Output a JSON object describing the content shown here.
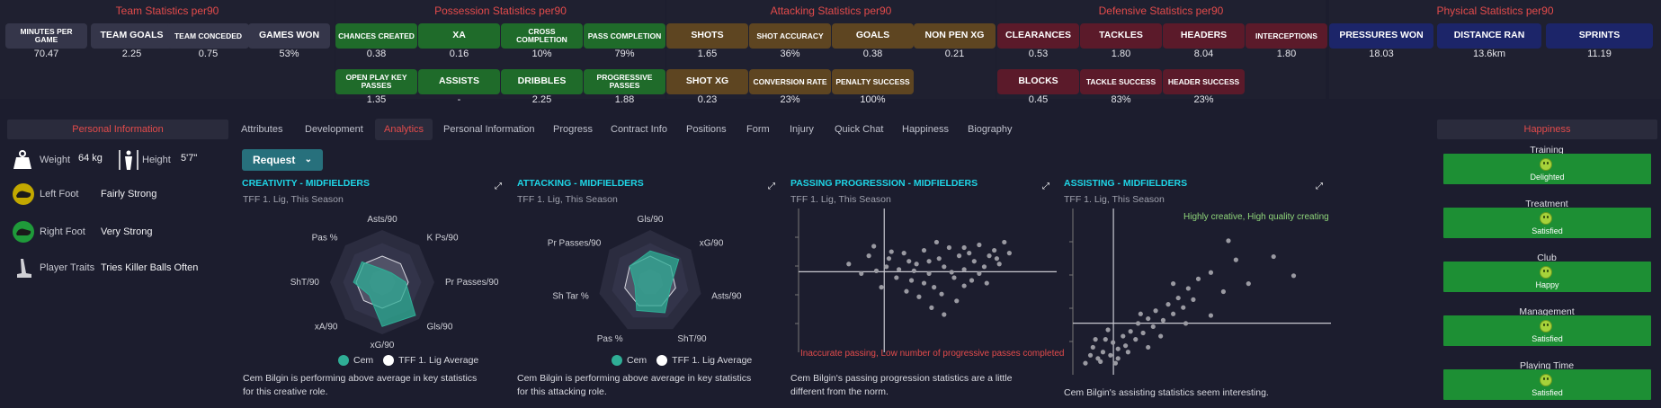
{
  "groups": {
    "team": {
      "title": "Team Statistics per90",
      "tiles": [
        {
          "label": "Minutes per game",
          "value": "70.47"
        },
        {
          "label": "Team goals",
          "value": "2.25"
        },
        {
          "label": "Team conceded",
          "value": "0.75"
        },
        {
          "label": "Games won",
          "value": "53%"
        }
      ]
    },
    "possession": {
      "title": "Possession Statistics per90",
      "tiles": [
        {
          "label": "Chances created",
          "value": "0.38"
        },
        {
          "label": "XA",
          "value": "0.16"
        },
        {
          "label": "Cross completion",
          "value": "10%"
        },
        {
          "label": "Pass completion",
          "value": "79%"
        },
        {
          "label": "Open play key passes",
          "value": "1.35"
        },
        {
          "label": "Assists",
          "value": "-"
        },
        {
          "label": "Dribbles",
          "value": "2.25"
        },
        {
          "label": "Progressive passes",
          "value": "1.88"
        }
      ]
    },
    "attacking": {
      "title": "Attacking Statistics per90",
      "tiles": [
        {
          "label": "Shots",
          "value": "1.65"
        },
        {
          "label": "Shot accuracy",
          "value": "36%"
        },
        {
          "label": "Goals",
          "value": "0.38"
        },
        {
          "label": "Non pen XG",
          "value": "0.21"
        },
        {
          "label": "Shot XG",
          "value": "0.23"
        },
        {
          "label": "Conversion rate",
          "value": "23%"
        },
        {
          "label": "Penalty success",
          "value": "100%"
        }
      ]
    },
    "defensive": {
      "title": "Defensive Statistics per90",
      "tiles": [
        {
          "label": "Clearances",
          "value": "0.53"
        },
        {
          "label": "Tackles",
          "value": "1.80"
        },
        {
          "label": "Headers",
          "value": "8.04"
        },
        {
          "label": "Interceptions",
          "value": "1.80"
        },
        {
          "label": "Blocks",
          "value": "0.45"
        },
        {
          "label": "Tackle success",
          "value": "83%"
        },
        {
          "label": "Header success",
          "value": "23%"
        }
      ]
    },
    "physical": {
      "title": "Physical Statistics per90",
      "tiles": [
        {
          "label": "Pressures won",
          "value": "18.03"
        },
        {
          "label": "Distance ran",
          "value": "13.6km"
        },
        {
          "label": "Sprints",
          "value": "11.19"
        }
      ]
    }
  },
  "personal": {
    "title": "Personal Information",
    "weight_label": "Weight",
    "weight_value": "64 kg",
    "height_label": "Height",
    "height_value": "5'7\"",
    "left_foot_label": "Left Foot",
    "left_foot_value": "Fairly Strong",
    "right_foot_label": "Right Foot",
    "right_foot_value": "Very Strong",
    "traits_label": "Player Traits",
    "traits_value": "Tries Killer Balls Often"
  },
  "tabs": [
    "Attributes",
    "Development",
    "Analytics",
    "Personal Information",
    "Progress",
    "Contract Info",
    "Positions",
    "Form",
    "Injury",
    "Quick Chat",
    "Happiness",
    "Biography"
  ],
  "active_tab": "Analytics",
  "request_label": "Request",
  "panels": {
    "creativity": {
      "title": "CREATIVITY - MIDFIELDERS",
      "subtitle": "TFF 1. Lig, This Season",
      "description": "Cem Bilgin is performing above average in key statistics for this creative role.",
      "legend_player": "Cem",
      "legend_avg": "TFF 1. Lig Average"
    },
    "attacking": {
      "title": "ATTACKING - MIDFIELDERS",
      "subtitle": "TFF 1. Lig, This Season",
      "description": "Cem Bilgin is performing above average in key statistics for this attacking role.",
      "legend_player": "Cem",
      "legend_avg": "TFF 1. Lig Average"
    },
    "passing": {
      "title": "PASSING PROGRESSION - MIDFIELDERS",
      "subtitle": "TFF 1. Lig, This Season",
      "description": "Cem Bilgin's passing progression statistics are a little different from the norm.",
      "annotation": "Inaccurate passing, Low number of progressive passes completed"
    },
    "assisting": {
      "title": "ASSISTING - MIDFIELDERS",
      "subtitle": "TFF 1. Lig, This Season",
      "description": "Cem Bilgin's assisting statistics seem interesting.",
      "annotation": "Highly creative, High quality creating"
    }
  },
  "chart_data": [
    {
      "type": "radar",
      "title": "CREATIVITY - MIDFIELDERS",
      "axes": [
        "Asts/90",
        "K Ps/90",
        "Pr Passes/90",
        "Gls/90",
        "xG/90",
        "xA/90",
        "ShT/90",
        "Pas %"
      ],
      "series": [
        {
          "name": "Cem",
          "values": [
            0.25,
            0.25,
            0.45,
            0.9,
            0.85,
            0.35,
            0.55,
            0.55
          ]
        },
        {
          "name": "TFF 1. Lig Average",
          "values": [
            0.5,
            0.5,
            0.5,
            0.5,
            0.5,
            0.5,
            0.5,
            0.5
          ]
        }
      ]
    },
    {
      "type": "radar",
      "title": "ATTACKING - MIDFIELDERS",
      "axes": [
        "Gls/90",
        "xG/90",
        "Asts/90",
        "ShT/90",
        "Pas %",
        "Sh Tar %",
        "Pr Passes/90"
      ],
      "series": [
        {
          "name": "Cem",
          "values": [
            0.6,
            0.7,
            0.4,
            0.65,
            0.6,
            0.3,
            0.5
          ]
        },
        {
          "name": "TFF 1. Lig Average",
          "values": [
            0.5,
            0.5,
            0.5,
            0.5,
            0.5,
            0.5,
            0.5
          ]
        }
      ]
    },
    {
      "type": "scatter",
      "title": "PASSING PROGRESSION - MIDFIELDERS",
      "points": [
        [
          0.2,
          0.62
        ],
        [
          0.25,
          0.55
        ],
        [
          0.3,
          0.75
        ],
        [
          0.33,
          0.45
        ],
        [
          0.36,
          0.66
        ],
        [
          0.4,
          0.58
        ],
        [
          0.42,
          0.7
        ],
        [
          0.45,
          0.5
        ],
        [
          0.47,
          0.62
        ],
        [
          0.5,
          0.72
        ],
        [
          0.52,
          0.55
        ],
        [
          0.54,
          0.45
        ],
        [
          0.56,
          0.66
        ],
        [
          0.58,
          0.6
        ],
        [
          0.6,
          0.74
        ],
        [
          0.62,
          0.52
        ],
        [
          0.64,
          0.68
        ],
        [
          0.66,
          0.58
        ],
        [
          0.68,
          0.7
        ],
        [
          0.7,
          0.64
        ],
        [
          0.72,
          0.76
        ],
        [
          0.74,
          0.6
        ],
        [
          0.76,
          0.68
        ],
        [
          0.78,
          0.72
        ],
        [
          0.8,
          0.62
        ],
        [
          0.82,
          0.78
        ],
        [
          0.48,
          0.38
        ],
        [
          0.53,
          0.3
        ],
        [
          0.57,
          0.4
        ],
        [
          0.63,
          0.35
        ],
        [
          0.66,
          0.46
        ],
        [
          0.44,
          0.64
        ],
        [
          0.39,
          0.52
        ],
        [
          0.35,
          0.6
        ],
        [
          0.28,
          0.68
        ],
        [
          0.46,
          0.57
        ],
        [
          0.55,
          0.78
        ],
        [
          0.61,
          0.56
        ],
        [
          0.69,
          0.5
        ],
        [
          0.72,
          0.55
        ],
        [
          0.58,
          0.25
        ],
        [
          0.5,
          0.48
        ],
        [
          0.43,
          0.42
        ],
        [
          0.37,
          0.71
        ],
        [
          0.31,
          0.57
        ],
        [
          0.66,
          0.74
        ],
        [
          0.75,
          0.48
        ],
        [
          0.79,
          0.66
        ],
        [
          0.84,
          0.7
        ],
        [
          0.52,
          0.64
        ]
      ]
    },
    {
      "type": "scatter",
      "title": "ASSISTING - MIDFIELDERS",
      "points": [
        [
          0.05,
          0.05
        ],
        [
          0.07,
          0.1
        ],
        [
          0.08,
          0.15
        ],
        [
          0.1,
          0.08
        ],
        [
          0.12,
          0.12
        ],
        [
          0.13,
          0.2
        ],
        [
          0.15,
          0.1
        ],
        [
          0.16,
          0.18
        ],
        [
          0.18,
          0.14
        ],
        [
          0.2,
          0.22
        ],
        [
          0.21,
          0.16
        ],
        [
          0.23,
          0.25
        ],
        [
          0.25,
          0.2
        ],
        [
          0.26,
          0.3
        ],
        [
          0.28,
          0.24
        ],
        [
          0.3,
          0.33
        ],
        [
          0.32,
          0.28
        ],
        [
          0.33,
          0.38
        ],
        [
          0.36,
          0.32
        ],
        [
          0.38,
          0.42
        ],
        [
          0.4,
          0.36
        ],
        [
          0.42,
          0.46
        ],
        [
          0.44,
          0.4
        ],
        [
          0.46,
          0.52
        ],
        [
          0.48,
          0.45
        ],
        [
          0.5,
          0.58
        ],
        [
          0.35,
          0.22
        ],
        [
          0.22,
          0.12
        ],
        [
          0.11,
          0.06
        ],
        [
          0.55,
          0.62
        ],
        [
          0.6,
          0.5
        ],
        [
          0.65,
          0.7
        ],
        [
          0.7,
          0.55
        ],
        [
          0.8,
          0.72
        ],
        [
          0.88,
          0.6
        ],
        [
          0.62,
          0.82
        ],
        [
          0.55,
          0.35
        ],
        [
          0.45,
          0.3
        ],
        [
          0.3,
          0.15
        ],
        [
          0.18,
          0.08
        ],
        [
          0.4,
          0.55
        ],
        [
          0.27,
          0.36
        ],
        [
          0.09,
          0.2
        ],
        [
          0.14,
          0.26
        ],
        [
          0.17,
          0.05
        ]
      ]
    }
  ],
  "happiness": {
    "title": "Happiness",
    "items": [
      {
        "label": "Training",
        "status": "Delighted"
      },
      {
        "label": "Treatment",
        "status": "Satisfied"
      },
      {
        "label": "Club",
        "status": "Happy"
      },
      {
        "label": "Management",
        "status": "Satisfied"
      },
      {
        "label": "Playing Time",
        "status": "Satisfied"
      }
    ]
  },
  "colors": {
    "accent": "#1fd5e6",
    "title_red": "#e34b4b",
    "player_series": "#2fae96",
    "happiness_bar": "#1d8f34"
  }
}
